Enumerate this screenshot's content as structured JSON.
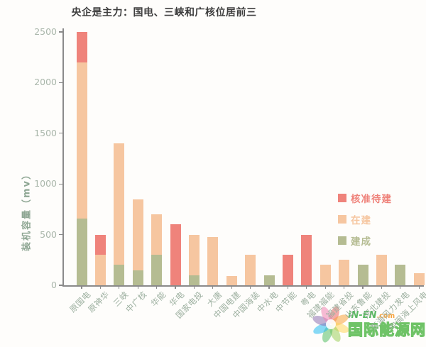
{
  "title": "央企是主力：国电、三峡和广核位居前三",
  "watermark": {
    "brand": "iN-EN",
    "suffix": ".com",
    "name": "国际能源网",
    "logo": "pinwheel-icon",
    "logo_colors": [
      "#e84b4b",
      "#f7941d",
      "#ffcf3f",
      "#8dc63f",
      "#39b54a",
      "#00aeef",
      "#7b5aa6",
      "#ec6ea5"
    ]
  },
  "chart_data": {
    "type": "bar",
    "stacked": true,
    "title": "央企是主力：国电、三峡和广核位居前三",
    "xlabel": "",
    "ylabel": "装机容量（mv）",
    "ylim": [
      0,
      2500
    ],
    "yticks": [
      0,
      500,
      1000,
      1500,
      2000,
      2500
    ],
    "ytick_labels": [
      "0",
      "500",
      "1000",
      "1500",
      "2000",
      "2500"
    ],
    "grid": false,
    "legend_position": "right-middle",
    "categories": [
      "原国电",
      "原神华",
      "三峡",
      "中广核",
      "华能",
      "华电",
      "国家电投",
      "大唐",
      "中国电建",
      "中国海装",
      "中水电",
      "中节能",
      "粤电",
      "福建福能",
      "福建省投",
      "山东鲁能",
      "河北建投",
      "东海风力发电",
      "中闽海上风电"
    ],
    "series": [
      {
        "name": "建成",
        "color": "#b5bc92",
        "values": [
          660,
          0,
          200,
          150,
          300,
          0,
          100,
          0,
          0,
          0,
          100,
          0,
          0,
          0,
          0,
          200,
          0,
          200,
          0
        ]
      },
      {
        "name": "在建",
        "color": "#f6c6a0",
        "values": [
          1540,
          300,
          1200,
          700,
          400,
          0,
          400,
          480,
          90,
          300,
          0,
          0,
          0,
          200,
          250,
          0,
          300,
          0,
          120
        ]
      },
      {
        "name": "核准待建",
        "color": "#ef837b",
        "values": [
          300,
          200,
          0,
          0,
          0,
          600,
          0,
          0,
          0,
          0,
          0,
          300,
          500,
          0,
          0,
          0,
          0,
          0,
          0
        ]
      }
    ],
    "totals": [
      2500,
      500,
      1400,
      850,
      700,
      600,
      500,
      480,
      90,
      300,
      100,
      300,
      500,
      200,
      250,
      200,
      300,
      200,
      120
    ]
  }
}
